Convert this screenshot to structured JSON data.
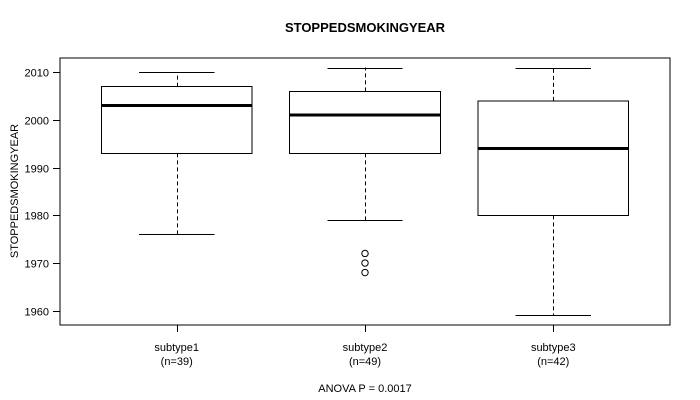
{
  "colors": {
    "line": "#000000",
    "text": "#000000",
    "background": "#ffffff"
  },
  "chart_data": {
    "type": "boxplot",
    "title": "STOPPEDSMOKINGYEAR",
    "ylabel": "STOPPEDSMOKINGYEAR",
    "xlabel": "",
    "footer": "ANOVA P = 0.0017",
    "ylim": [
      1957,
      2013
    ],
    "yticks": [
      1960,
      1970,
      1980,
      1990,
      2000,
      2010
    ],
    "grid": false,
    "legend": "none",
    "groups": [
      {
        "label": "subtype1",
        "sublabel": "(n=39)",
        "n": 39,
        "whisker_low": 1976,
        "q1": 1993,
        "median": 2003,
        "q3": 2007,
        "whisker_high": 2010,
        "outliers": []
      },
      {
        "label": "subtype2",
        "sublabel": "(n=49)",
        "n": 49,
        "whisker_low": 1979,
        "q1": 1993,
        "median": 2001,
        "q3": 2006,
        "whisker_high": 2011,
        "outliers": [
          1972,
          1970,
          1968
        ]
      },
      {
        "label": "subtype3",
        "sublabel": "(n=42)",
        "n": 42,
        "whisker_low": 1959,
        "q1": 1980,
        "median": 1994,
        "q3": 2004,
        "whisker_high": 2011,
        "outliers": []
      }
    ]
  }
}
